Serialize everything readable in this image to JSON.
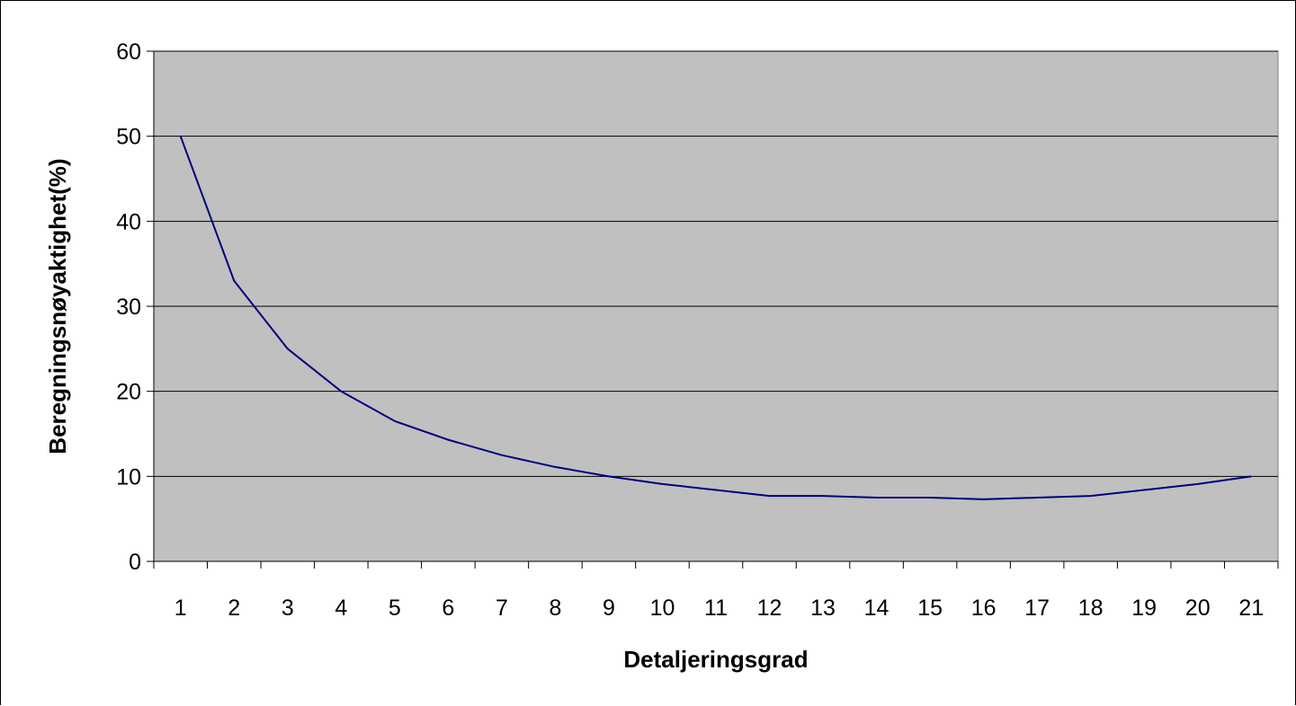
{
  "chart_data": {
    "type": "line",
    "title": "",
    "xlabel": "Detaljeringsgrad",
    "ylabel": "Beregningsnøyaktighet(%)",
    "categories": [
      "1",
      "2",
      "3",
      "4",
      "5",
      "6",
      "7",
      "8",
      "9",
      "10",
      "11",
      "12",
      "13",
      "14",
      "15",
      "16",
      "17",
      "18",
      "19",
      "20",
      "21"
    ],
    "yticks": [
      "0",
      "10",
      "20",
      "30",
      "40",
      "50",
      "60"
    ],
    "ylim": [
      0,
      60
    ],
    "grid": "horizontal",
    "legend": "none",
    "plot_background": "#c0c0c0",
    "line_color": "#000080",
    "series": [
      {
        "values": [
          50,
          33,
          25,
          20,
          16.5,
          14.3,
          12.5,
          11.1,
          10,
          9.1,
          8.4,
          7.7,
          7.7,
          7.5,
          7.5,
          7.3,
          7.5,
          7.7,
          8.4,
          9.1,
          10
        ]
      }
    ]
  }
}
